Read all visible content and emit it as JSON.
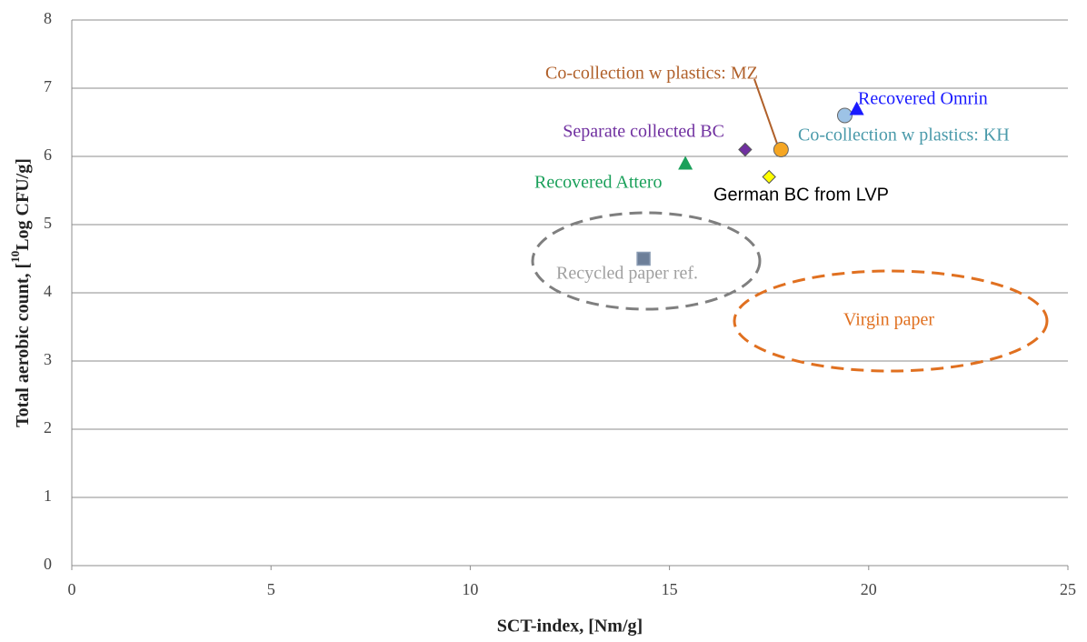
{
  "chart_data": {
    "type": "scatter",
    "x_label": "SCT-index, [Nm/g]",
    "y_label": [
      "Total aerobic count, [",
      "10",
      "Log CFU/g]"
    ],
    "xlim": [
      0,
      25
    ],
    "xticks": [
      0,
      5,
      10,
      15,
      20,
      25
    ],
    "ylim": [
      0,
      8
    ],
    "yticks": [
      0,
      1,
      2,
      3,
      4,
      5,
      6,
      7,
      8
    ],
    "grid": true,
    "annotations": [
      "Virgin paper"
    ],
    "series": [
      {
        "name": "Recycled paper ref.",
        "color": "#6d7f99",
        "label_color": "#a0a0a0",
        "marker": "square",
        "x": [
          14.35
        ],
        "y": [
          4.5
        ]
      },
      {
        "name": "Recovered Attero",
        "color": "#1aa05a",
        "label_color": "#1aa05a",
        "marker": "triangle",
        "x": [
          15.4
        ],
        "y": [
          5.9
        ]
      },
      {
        "name": "Separate collected BC",
        "color": "#7030a0",
        "label_color": "#7030a0",
        "marker": "diamond",
        "x": [
          16.9
        ],
        "y": [
          6.1
        ]
      },
      {
        "name": "German BC from LVP",
        "color": "#ffff00",
        "label_color": "#000000",
        "marker": "diamond",
        "x": [
          17.5
        ],
        "y": [
          5.7
        ]
      },
      {
        "name": "Co-collection w plastics: MZ",
        "color": "#f5a623",
        "label_color": "#b0602a",
        "marker": "circle",
        "x": [
          17.8
        ],
        "y": [
          6.1
        ]
      },
      {
        "name": "Co-collection w plastics: KH",
        "color": "#9dc3e6",
        "label_color": "#4a9aaa",
        "marker": "circle",
        "x": [
          19.4
        ],
        "y": [
          6.6
        ]
      },
      {
        "name": "Recovered Omrin",
        "color": "#1a1aff",
        "label_color": "#1a1aff",
        "marker": "triangle",
        "x": [
          19.7
        ],
        "y": [
          6.7
        ]
      }
    ]
  }
}
